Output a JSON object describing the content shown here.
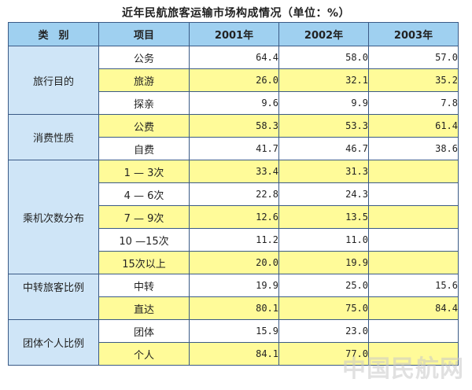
{
  "title": "近年民航旅客运输市场构成情况（单位：%）",
  "headers": [
    "类　别",
    "项目",
    "2001年",
    "2002年",
    "2003年"
  ],
  "groups": [
    {
      "name": "旅行目的",
      "rows": [
        {
          "item": "公务",
          "y2001": "64.4",
          "y2002": "58.0",
          "y2003": "57.0"
        },
        {
          "item": "旅游",
          "y2001": "26.0",
          "y2002": "32.1",
          "y2003": "35.2"
        },
        {
          "item": "探亲",
          "y2001": "9.6",
          "y2002": "9.9",
          "y2003": "7.8"
        }
      ]
    },
    {
      "name": "消费性质",
      "rows": [
        {
          "item": "公费",
          "y2001": "58.3",
          "y2002": "53.3",
          "y2003": "61.4"
        },
        {
          "item": "自费",
          "y2001": "41.7",
          "y2002": "46.7",
          "y2003": "38.6"
        }
      ]
    },
    {
      "name": "乘机次数分布",
      "rows": [
        {
          "item": "1 — 3次",
          "y2001": "33.4",
          "y2002": "31.3",
          "y2003": ""
        },
        {
          "item": "4 — 6次",
          "y2001": "22.8",
          "y2002": "24.3",
          "y2003": ""
        },
        {
          "item": "7 — 9次",
          "y2001": "12.6",
          "y2002": "13.5",
          "y2003": ""
        },
        {
          "item": "10 —15次",
          "y2001": "11.2",
          "y2002": "11.0",
          "y2003": ""
        },
        {
          "item": "15次以上",
          "y2001": "20.0",
          "y2002": "19.9",
          "y2003": ""
        }
      ]
    },
    {
      "name": "中转旅客比例",
      "rows": [
        {
          "item": "中转",
          "y2001": "19.9",
          "y2002": "25.0",
          "y2003": "15.6"
        },
        {
          "item": "直达",
          "y2001": "80.1",
          "y2002": "75.0",
          "y2003": "84.4"
        }
      ]
    },
    {
      "name": "团体个人比例",
      "rows": [
        {
          "item": "团体",
          "y2001": "15.9",
          "y2002": "23.0",
          "y2003": ""
        },
        {
          "item": "个人",
          "y2001": "84.1",
          "y2002": "77.0",
          "y2003": ""
        }
      ]
    }
  ],
  "watermark": "中国民航网",
  "colors": {
    "header": "#9fd0f0",
    "category": "#cfe5f7",
    "highlight": "#fffb99",
    "border": "#3a5a86"
  }
}
